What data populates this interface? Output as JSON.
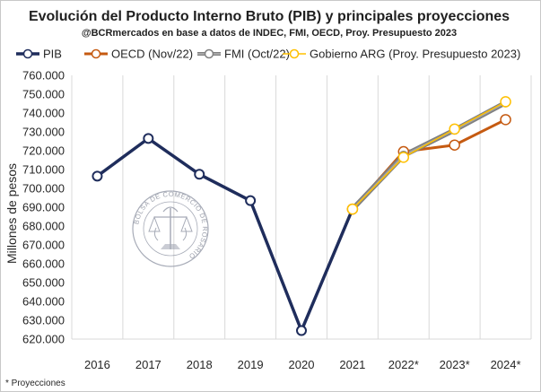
{
  "chart_data": {
    "type": "line",
    "title": "Evolución del Producto Interno Bruto (PIB) y principales proyecciones",
    "subtitle": "@BCRmercados en base a datos de INDEC, FMI, OECD, Proy. Presupuesto 2023",
    "ylabel": "Millones de pesos",
    "xlabel": "",
    "categories": [
      "2016",
      "2017",
      "2018",
      "2019",
      "2020",
      "2021",
      "2022*",
      "2023*",
      "2024*"
    ],
    "ylim": [
      620000,
      760000
    ],
    "yticks": [
      "620.000",
      "630.000",
      "640.000",
      "650.000",
      "660.000",
      "670.000",
      "680.000",
      "690.000",
      "700.000",
      "710.000",
      "720.000",
      "730.000",
      "740.000",
      "750.000",
      "760.000"
    ],
    "grid": "vertical",
    "legend_position": "top",
    "series": [
      {
        "name": "PIB",
        "color": "#1f2d5c",
        "values": [
          706500,
          726500,
          707500,
          693500,
          624500,
          689000,
          null,
          null,
          null
        ]
      },
      {
        "name": "OECD (Nov/22)",
        "color": "#c55a11",
        "values": [
          null,
          null,
          null,
          null,
          null,
          689000,
          719500,
          723000,
          736500
        ]
      },
      {
        "name": "FMI (Oct/22)",
        "color": "#808080",
        "values": [
          null,
          null,
          null,
          null,
          null,
          689000,
          717500,
          731000,
          745500
        ]
      },
      {
        "name": "Gobierno ARG (Proy. Presupuesto 2023)",
        "color": "#ffc000",
        "values": [
          null,
          null,
          null,
          null,
          null,
          689000,
          716500,
          731500,
          746000
        ]
      }
    ],
    "footnote": "* Proyecciones"
  },
  "watermark": {
    "text": "BOLSA DE COMERCIO DE ROSARIO",
    "icon": "bcr-seal-icon",
    "color": "#8a90a0"
  }
}
